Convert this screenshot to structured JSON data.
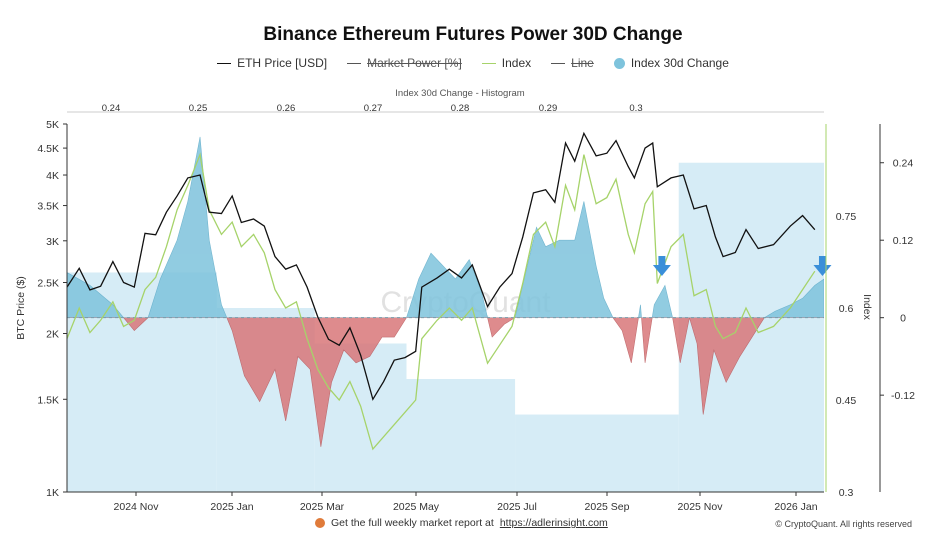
{
  "title": "Binance Ethereum Futures Power 30D Change",
  "legend": [
    {
      "label": "ETH Price [USD]",
      "kind": "line",
      "color": "#111111",
      "disabled": false
    },
    {
      "label": "Market Power [%]",
      "kind": "line",
      "color": "#555555",
      "disabled": true
    },
    {
      "label": "Index",
      "kind": "line",
      "color": "#a6d36a",
      "disabled": false
    },
    {
      "label": "Line",
      "kind": "line",
      "color": "#555555",
      "disabled": true
    },
    {
      "label": "Index 30d Change",
      "kind": "dot",
      "color": "#7ec3dc",
      "disabled": false
    }
  ],
  "watermark": "CryptoQuant",
  "footer": {
    "report_text": "Get the full weekly market report at",
    "report_link": "https://adlerinsight.com",
    "copyright": "© CryptoQuant. All rights reserved"
  },
  "chart_data": {
    "type": "line",
    "top_axis_label": "Index 30d Change - Histogram",
    "top_ticks": [
      "0.24",
      "0.25",
      "0.26",
      "0.27",
      "0.28",
      "0.29",
      "0.3"
    ],
    "x_ticks": [
      "2024 Nov",
      "2025 Jan",
      "2025 Mar",
      "2025 May",
      "2025 Jul",
      "2025 Sep",
      "2025 Nov",
      "2026 Jan"
    ],
    "x_range": [
      "2024-09-20",
      "2026-01-28"
    ],
    "left_axis": {
      "title": "BTC Price ($)",
      "scale": "log",
      "range": [
        1000,
        5000
      ],
      "ticks": [
        "1K",
        "1.5K",
        "2K",
        "2.5K",
        "3K",
        "3.5K",
        "4K",
        "4.5K",
        "5K"
      ]
    },
    "index_axis": {
      "title": "Index",
      "range": [
        0.3,
        0.9
      ],
      "ticks": [
        "0.3",
        "0.45",
        "0.6",
        "0.75"
      ]
    },
    "change_axis": {
      "range": [
        -0.27,
        0.3
      ],
      "ticks": [
        "0.24",
        "0.12",
        "0",
        "-0.12"
      ]
    },
    "colors": {
      "price": "#111111",
      "index": "#a6d36a",
      "positive": "#7ec3dc",
      "negative": "#d9777a",
      "histogram": "#cfe9f4",
      "marker": "#3a8fd9"
    },
    "histogram": [
      {
        "start": "2024-09-20",
        "end": "2024-12-27",
        "value": 0.07
      },
      {
        "start": "2024-12-27",
        "end": "2025-03-01",
        "value": 0.015
      },
      {
        "start": "2025-03-01",
        "end": "2025-04-30",
        "value": -0.04
      },
      {
        "start": "2025-04-30",
        "end": "2025-07-10",
        "value": -0.095
      },
      {
        "start": "2025-07-10",
        "end": "2025-10-25",
        "value": -0.15
      },
      {
        "start": "2025-10-25",
        "end": "2026-01-28",
        "value": 0.24
      }
    ],
    "eth_price": [
      [
        "2024-09-20",
        2450
      ],
      [
        "2024-09-28",
        2660
      ],
      [
        "2024-10-05",
        2420
      ],
      [
        "2024-10-12",
        2460
      ],
      [
        "2024-10-20",
        2740
      ],
      [
        "2024-10-27",
        2500
      ],
      [
        "2024-11-03",
        2450
      ],
      [
        "2024-11-10",
        3100
      ],
      [
        "2024-11-17",
        3080
      ],
      [
        "2024-11-24",
        3400
      ],
      [
        "2024-12-01",
        3650
      ],
      [
        "2024-12-08",
        3950
      ],
      [
        "2024-12-16",
        4000
      ],
      [
        "2024-12-22",
        3400
      ],
      [
        "2024-12-30",
        3380
      ],
      [
        "2025-01-06",
        3650
      ],
      [
        "2025-01-12",
        3250
      ],
      [
        "2025-01-20",
        3300
      ],
      [
        "2025-01-27",
        3200
      ],
      [
        "2025-02-03",
        2800
      ],
      [
        "2025-02-10",
        2650
      ],
      [
        "2025-02-17",
        2700
      ],
      [
        "2025-02-24",
        2450
      ],
      [
        "2025-03-03",
        2150
      ],
      [
        "2025-03-10",
        1950
      ],
      [
        "2025-03-17",
        1900
      ],
      [
        "2025-03-24",
        2050
      ],
      [
        "2025-03-31",
        1820
      ],
      [
        "2025-04-08",
        1500
      ],
      [
        "2025-04-15",
        1620
      ],
      [
        "2025-04-22",
        1780
      ],
      [
        "2025-04-29",
        1800
      ],
      [
        "2025-05-06",
        1850
      ],
      [
        "2025-05-10",
        2450
      ],
      [
        "2025-05-20",
        2550
      ],
      [
        "2025-05-28",
        2650
      ],
      [
        "2025-06-05",
        2550
      ],
      [
        "2025-06-12",
        2700
      ],
      [
        "2025-06-22",
        2250
      ],
      [
        "2025-06-30",
        2450
      ],
      [
        "2025-07-08",
        2600
      ],
      [
        "2025-07-15",
        3050
      ],
      [
        "2025-07-22",
        3700
      ],
      [
        "2025-07-30",
        3750
      ],
      [
        "2025-08-05",
        3550
      ],
      [
        "2025-08-12",
        4600
      ],
      [
        "2025-08-18",
        4250
      ],
      [
        "2025-08-24",
        4800
      ],
      [
        "2025-09-01",
        4350
      ],
      [
        "2025-09-08",
        4400
      ],
      [
        "2025-09-14",
        4650
      ],
      [
        "2025-09-22",
        4150
      ],
      [
        "2025-09-26",
        3950
      ],
      [
        "2025-10-03",
        4500
      ],
      [
        "2025-10-08",
        4600
      ],
      [
        "2025-10-11",
        3800
      ],
      [
        "2025-10-20",
        3950
      ],
      [
        "2025-10-28",
        4000
      ],
      [
        "2025-11-04",
        3450
      ],
      [
        "2025-11-12",
        3500
      ],
      [
        "2025-11-18",
        3050
      ],
      [
        "2025-11-23",
        2800
      ],
      [
        "2025-12-01",
        2850
      ],
      [
        "2025-12-08",
        3150
      ],
      [
        "2025-12-16",
        2900
      ],
      [
        "2025-12-26",
        2950
      ],
      [
        "2026-01-06",
        3200
      ],
      [
        "2026-01-14",
        3350
      ],
      [
        "2026-01-22",
        3150
      ]
    ],
    "index": [
      [
        "2024-09-20",
        0.55
      ],
      [
        "2024-09-28",
        0.6
      ],
      [
        "2024-10-05",
        0.56
      ],
      [
        "2024-10-12",
        0.58
      ],
      [
        "2024-10-20",
        0.61
      ],
      [
        "2024-10-27",
        0.57
      ],
      [
        "2024-11-03",
        0.58
      ],
      [
        "2024-11-10",
        0.63
      ],
      [
        "2024-11-17",
        0.65
      ],
      [
        "2024-11-24",
        0.7
      ],
      [
        "2024-12-01",
        0.76
      ],
      [
        "2024-12-08",
        0.8
      ],
      [
        "2024-12-16",
        0.85
      ],
      [
        "2024-12-22",
        0.76
      ],
      [
        "2024-12-30",
        0.72
      ],
      [
        "2025-01-06",
        0.74
      ],
      [
        "2025-01-12",
        0.7
      ],
      [
        "2025-01-20",
        0.72
      ],
      [
        "2025-01-27",
        0.69
      ],
      [
        "2025-02-03",
        0.63
      ],
      [
        "2025-02-10",
        0.6
      ],
      [
        "2025-02-17",
        0.61
      ],
      [
        "2025-02-24",
        0.55
      ],
      [
        "2025-03-03",
        0.5
      ],
      [
        "2025-03-10",
        0.47
      ],
      [
        "2025-03-17",
        0.45
      ],
      [
        "2025-03-24",
        0.48
      ],
      [
        "2025-03-31",
        0.44
      ],
      [
        "2025-04-08",
        0.37
      ],
      [
        "2025-04-15",
        0.39
      ],
      [
        "2025-04-22",
        0.41
      ],
      [
        "2025-04-29",
        0.43
      ],
      [
        "2025-05-06",
        0.45
      ],
      [
        "2025-05-10",
        0.55
      ],
      [
        "2025-05-20",
        0.58
      ],
      [
        "2025-05-28",
        0.6
      ],
      [
        "2025-06-05",
        0.58
      ],
      [
        "2025-06-12",
        0.6
      ],
      [
        "2025-06-22",
        0.51
      ],
      [
        "2025-06-30",
        0.54
      ],
      [
        "2025-07-08",
        0.57
      ],
      [
        "2025-07-15",
        0.64
      ],
      [
        "2025-07-22",
        0.72
      ],
      [
        "2025-07-30",
        0.74
      ],
      [
        "2025-08-05",
        0.7
      ],
      [
        "2025-08-12",
        0.8
      ],
      [
        "2025-08-18",
        0.76
      ],
      [
        "2025-08-24",
        0.85
      ],
      [
        "2025-09-01",
        0.77
      ],
      [
        "2025-09-08",
        0.78
      ],
      [
        "2025-09-14",
        0.81
      ],
      [
        "2025-09-22",
        0.72
      ],
      [
        "2025-09-26",
        0.69
      ],
      [
        "2025-10-03",
        0.77
      ],
      [
        "2025-10-08",
        0.79
      ],
      [
        "2025-10-11",
        0.64
      ],
      [
        "2025-10-20",
        0.7
      ],
      [
        "2025-10-28",
        0.72
      ],
      [
        "2025-11-04",
        0.62
      ],
      [
        "2025-11-12",
        0.63
      ],
      [
        "2025-11-18",
        0.57
      ],
      [
        "2025-11-23",
        0.55
      ],
      [
        "2025-12-01",
        0.56
      ],
      [
        "2025-12-08",
        0.6
      ],
      [
        "2025-12-16",
        0.56
      ],
      [
        "2025-12-26",
        0.57
      ],
      [
        "2026-01-06",
        0.6
      ],
      [
        "2026-01-14",
        0.63
      ],
      [
        "2026-01-22",
        0.66
      ]
    ],
    "change_30d": [
      [
        "2024-09-20",
        0.07
      ],
      [
        "2024-10-05",
        0.05
      ],
      [
        "2024-10-20",
        0.02
      ],
      [
        "2024-11-03",
        -0.02
      ],
      [
        "2024-11-12",
        0.0
      ],
      [
        "2024-11-20",
        0.06
      ],
      [
        "2024-12-01",
        0.12
      ],
      [
        "2024-12-08",
        0.18
      ],
      [
        "2024-12-16",
        0.28
      ],
      [
        "2024-12-22",
        0.12
      ],
      [
        "2024-12-30",
        0.02
      ],
      [
        "2025-01-06",
        -0.02
      ],
      [
        "2025-01-14",
        -0.09
      ],
      [
        "2025-01-24",
        -0.13
      ],
      [
        "2025-02-03",
        -0.08
      ],
      [
        "2025-02-10",
        -0.16
      ],
      [
        "2025-02-18",
        -0.06
      ],
      [
        "2025-02-26",
        -0.08
      ],
      [
        "2025-03-05",
        -0.2
      ],
      [
        "2025-03-12",
        -0.1
      ],
      [
        "2025-03-20",
        -0.05
      ],
      [
        "2025-03-28",
        -0.07
      ],
      [
        "2025-04-06",
        -0.06
      ],
      [
        "2025-04-14",
        -0.03
      ],
      [
        "2025-04-22",
        -0.03
      ],
      [
        "2025-04-30",
        0.0
      ],
      [
        "2025-05-08",
        0.06
      ],
      [
        "2025-05-16",
        0.1
      ],
      [
        "2025-05-24",
        0.08
      ],
      [
        "2025-06-01",
        0.06
      ],
      [
        "2025-06-10",
        0.09
      ],
      [
        "2025-06-18",
        0.04
      ],
      [
        "2025-06-25",
        -0.03
      ],
      [
        "2025-07-03",
        -0.01
      ],
      [
        "2025-07-10",
        0.0
      ],
      [
        "2025-07-16",
        0.06
      ],
      [
        "2025-07-24",
        0.14
      ],
      [
        "2025-07-30",
        0.11
      ],
      [
        "2025-08-08",
        0.12
      ],
      [
        "2025-08-18",
        0.12
      ],
      [
        "2025-08-24",
        0.18
      ],
      [
        "2025-09-01",
        0.08
      ],
      [
        "2025-09-06",
        0.03
      ],
      [
        "2025-09-12",
        0.0
      ],
      [
        "2025-09-18",
        -0.02
      ],
      [
        "2025-09-24",
        -0.07
      ],
      [
        "2025-09-30",
        0.02
      ],
      [
        "2025-10-03",
        -0.07
      ],
      [
        "2025-10-09",
        0.02
      ],
      [
        "2025-10-16",
        0.05
      ],
      [
        "2025-10-21",
        0.0
      ],
      [
        "2025-10-26",
        -0.07
      ],
      [
        "2025-11-01",
        0.0
      ],
      [
        "2025-11-06",
        -0.04
      ],
      [
        "2025-11-10",
        -0.15
      ],
      [
        "2025-11-17",
        -0.05
      ],
      [
        "2025-11-25",
        -0.1
      ],
      [
        "2025-12-04",
        -0.06
      ],
      [
        "2025-12-12",
        -0.03
      ],
      [
        "2025-12-20",
        0.0
      ],
      [
        "2025-12-27",
        0.01
      ],
      [
        "2026-01-06",
        0.02
      ],
      [
        "2026-01-14",
        0.03
      ],
      [
        "2026-01-22",
        0.05
      ],
      [
        "2026-01-28",
        0.06
      ]
    ],
    "markers": [
      "2025-10-14",
      "2026-01-27"
    ]
  }
}
